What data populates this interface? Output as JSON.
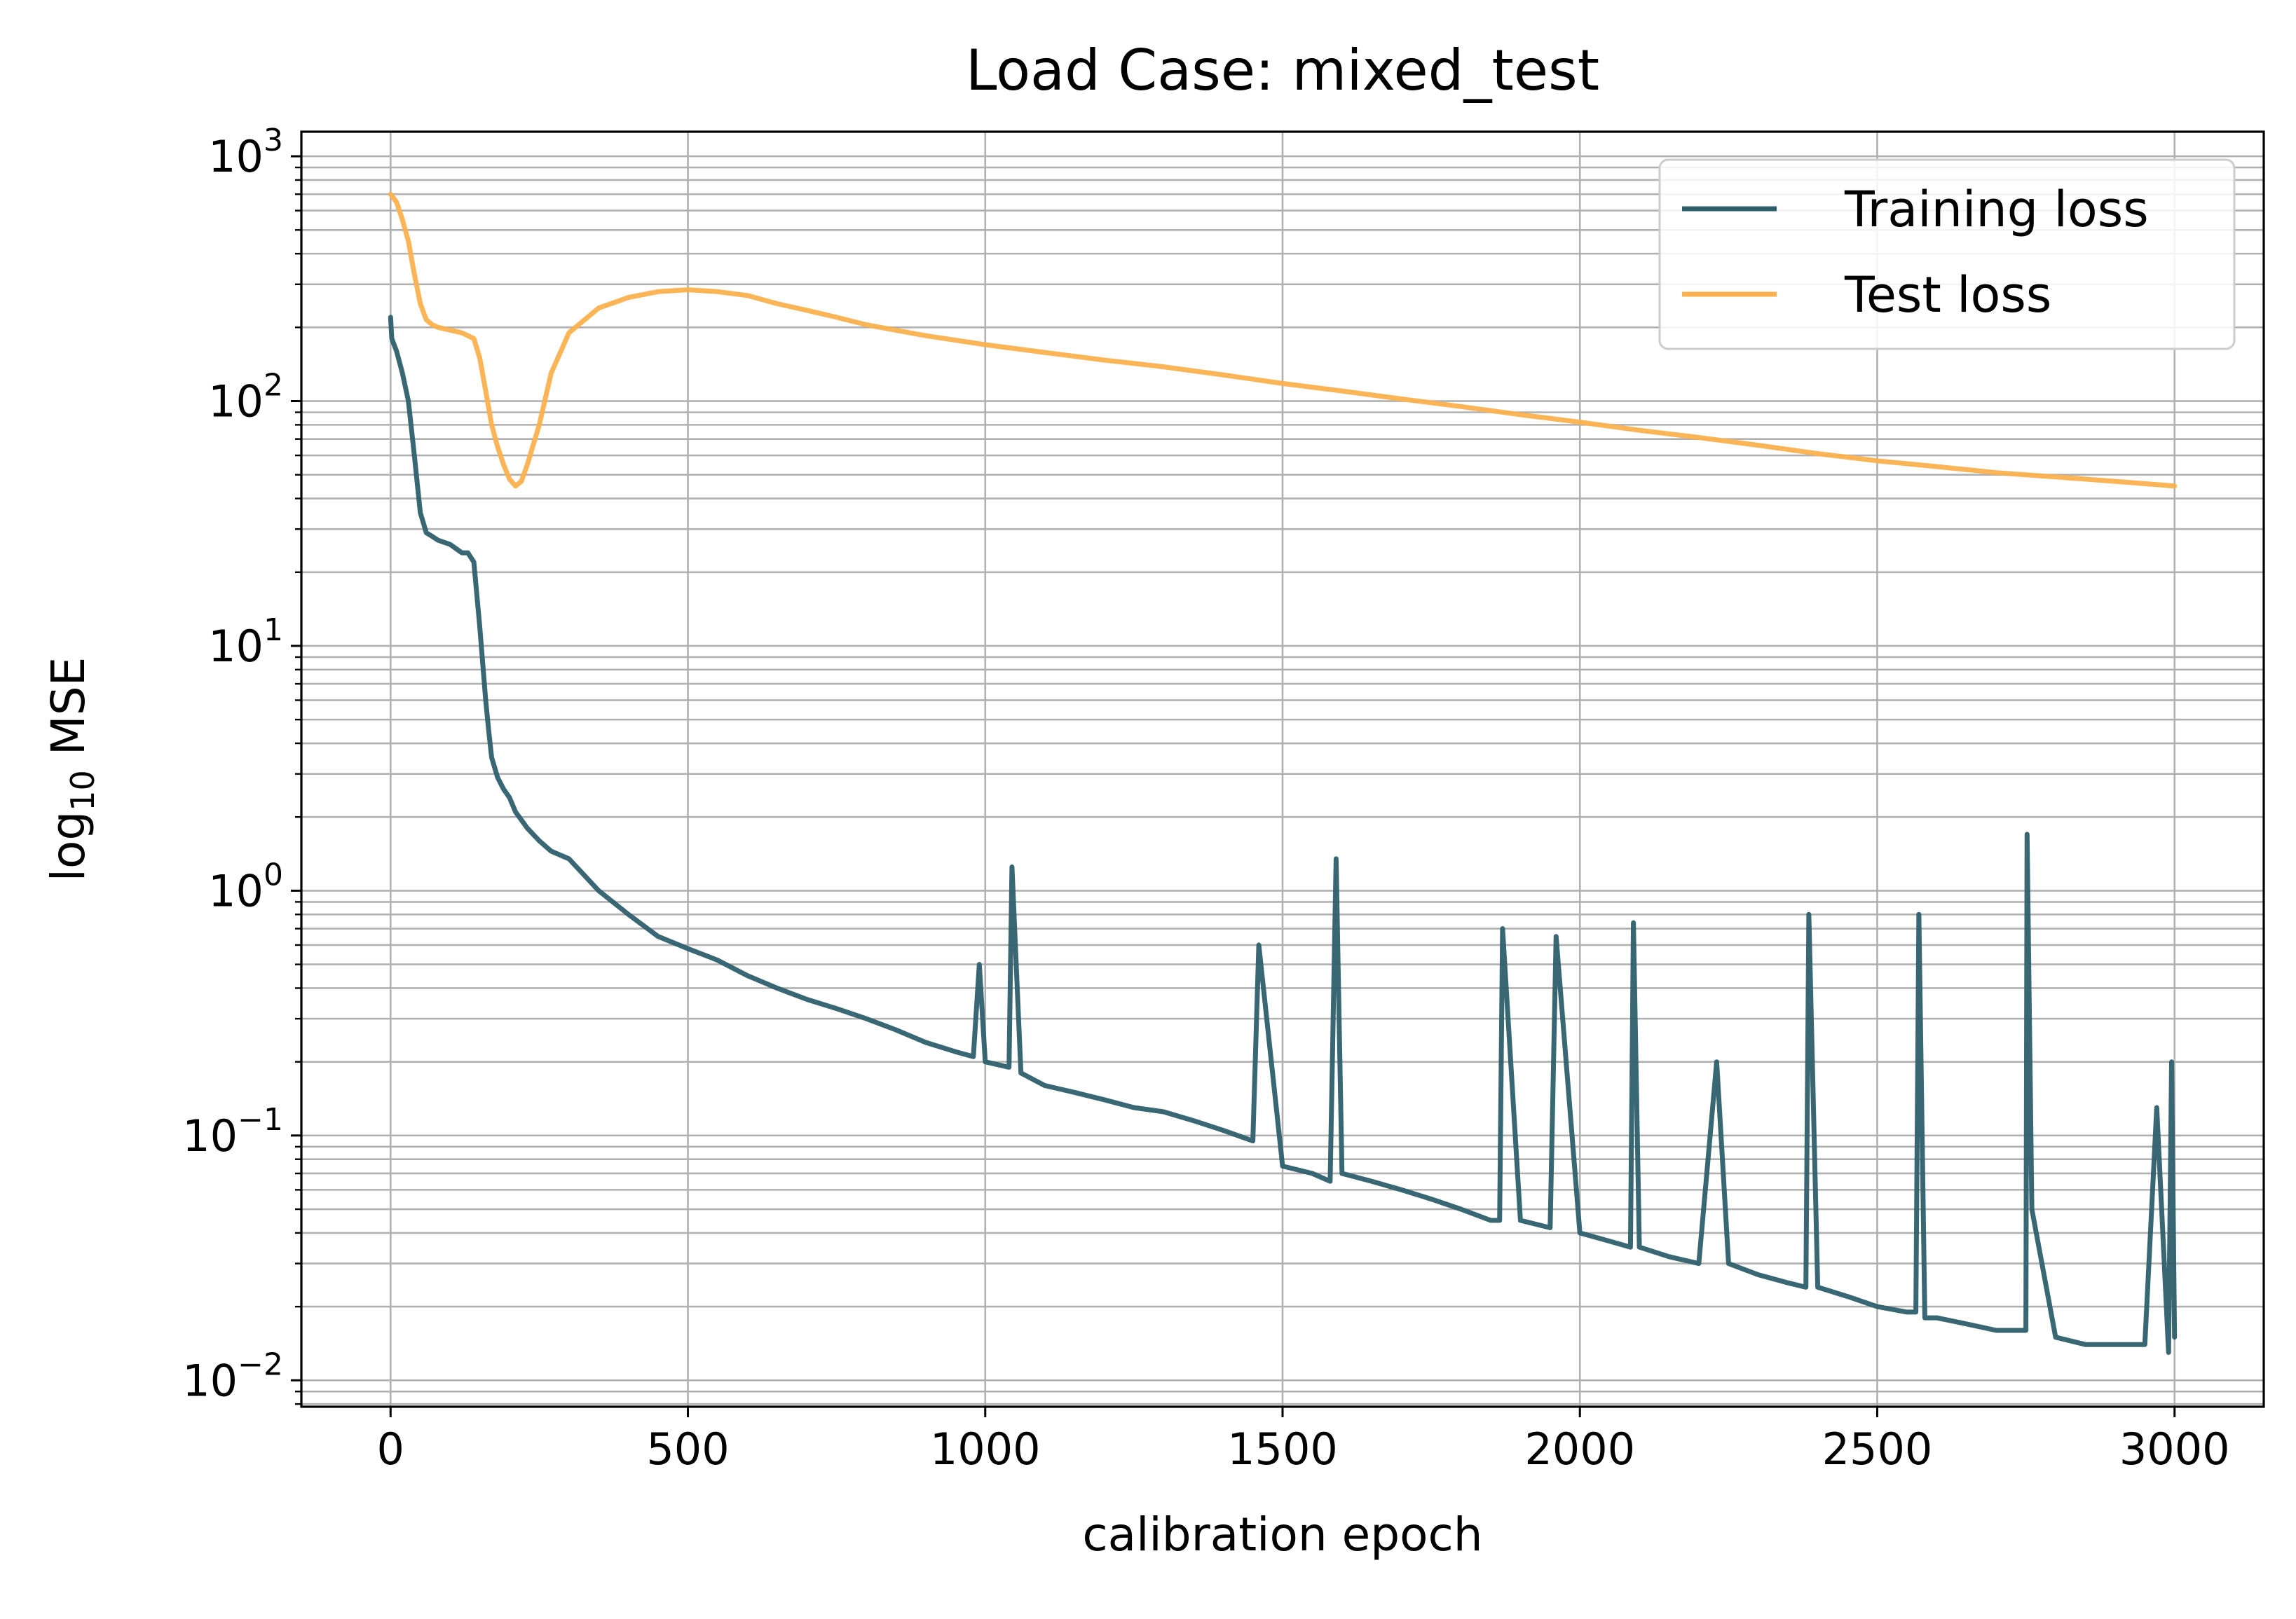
{
  "chart_data": {
    "type": "line",
    "title": "Load Case: mixed_test",
    "xlabel": "calibration epoch",
    "ylabel": {
      "base": "log",
      "subscript": "10",
      "rest": " MSE"
    },
    "x_scale": "linear",
    "y_scale": "log",
    "xlim": [
      -150,
      3150
    ],
    "ylim": [
      0.0078,
      1260
    ],
    "x_ticks": [
      {
        "value": 0,
        "label": "0"
      },
      {
        "value": 500,
        "label": "500"
      },
      {
        "value": 1000,
        "label": "1000"
      },
      {
        "value": 1500,
        "label": "1500"
      },
      {
        "value": 2000,
        "label": "2000"
      },
      {
        "value": 2500,
        "label": "2500"
      },
      {
        "value": 3000,
        "label": "3000"
      }
    ],
    "y_ticks": [
      {
        "value": 1000,
        "base": "10",
        "exp": "3"
      },
      {
        "value": 100,
        "base": "10",
        "exp": "2"
      },
      {
        "value": 10,
        "base": "10",
        "exp": "1"
      },
      {
        "value": 1,
        "base": "10",
        "exp": "0"
      },
      {
        "value": 0.1,
        "base": "10",
        "exp": "−1"
      },
      {
        "value": 0.01,
        "base": "10",
        "exp": "−2"
      }
    ],
    "grid": "major and minor, both axes",
    "legend_position": "top-right",
    "series": [
      {
        "name": "Training loss",
        "color": "#2e5f6b",
        "x": [
          0,
          2,
          10,
          20,
          30,
          40,
          50,
          60,
          70,
          80,
          100,
          120,
          130,
          140,
          150,
          160,
          165,
          170,
          180,
          190,
          200,
          210,
          230,
          250,
          270,
          300,
          350,
          400,
          450,
          500,
          550,
          600,
          650,
          700,
          750,
          800,
          850,
          900,
          950,
          980,
          990,
          1000,
          1040,
          1045,
          1060,
          1100,
          1150,
          1200,
          1250,
          1300,
          1350,
          1400,
          1450,
          1460,
          1500,
          1550,
          1580,
          1590,
          1600,
          1650,
          1700,
          1750,
          1800,
          1850,
          1865,
          1870,
          1900,
          1950,
          1960,
          2000,
          2050,
          2085,
          2090,
          2100,
          2150,
          2200,
          2230,
          2250,
          2300,
          2350,
          2380,
          2385,
          2400,
          2450,
          2500,
          2550,
          2565,
          2570,
          2580,
          2600,
          2650,
          2700,
          2750,
          2752,
          2760,
          2800,
          2850,
          2900,
          2950,
          2970,
          2990,
          2995,
          3000
        ],
        "y": [
          220,
          180,
          160,
          130,
          100,
          60,
          35,
          29,
          28,
          27,
          26,
          24,
          24,
          22,
          12,
          6,
          4.5,
          3.5,
          2.9,
          2.6,
          2.4,
          2.1,
          1.8,
          1.6,
          1.45,
          1.35,
          1.0,
          0.8,
          0.65,
          0.58,
          0.52,
          0.45,
          0.4,
          0.36,
          0.33,
          0.3,
          0.27,
          0.24,
          0.22,
          0.21,
          0.5,
          0.2,
          0.19,
          1.25,
          0.18,
          0.16,
          0.15,
          0.14,
          0.13,
          0.125,
          0.115,
          0.105,
          0.095,
          0.6,
          0.075,
          0.07,
          0.065,
          1.35,
          0.07,
          0.065,
          0.06,
          0.055,
          0.05,
          0.045,
          0.045,
          0.7,
          0.045,
          0.042,
          0.65,
          0.04,
          0.037,
          0.035,
          0.74,
          0.035,
          0.032,
          0.03,
          0.2,
          0.03,
          0.027,
          0.025,
          0.024,
          0.8,
          0.024,
          0.022,
          0.02,
          0.019,
          0.019,
          0.8,
          0.018,
          0.018,
          0.017,
          0.016,
          0.016,
          1.7,
          0.05,
          0.015,
          0.014,
          0.014,
          0.014,
          0.13,
          0.013,
          0.2,
          0.015
        ]
      },
      {
        "name": "Test loss",
        "color": "#fbb04d",
        "x": [
          0,
          10,
          20,
          30,
          40,
          50,
          60,
          70,
          80,
          100,
          120,
          140,
          150,
          160,
          170,
          180,
          190,
          200,
          210,
          220,
          230,
          250,
          270,
          300,
          350,
          400,
          450,
          500,
          550,
          600,
          650,
          700,
          750,
          800,
          900,
          1000,
          1100,
          1200,
          1300,
          1400,
          1500,
          1600,
          1700,
          1800,
          1900,
          2000,
          2100,
          2200,
          2300,
          2400,
          2500,
          2600,
          2700,
          2800,
          2900,
          3000
        ],
        "y": [
          700,
          650,
          550,
          450,
          330,
          250,
          215,
          205,
          200,
          195,
          190,
          180,
          150,
          110,
          80,
          65,
          55,
          48,
          45,
          47,
          55,
          80,
          130,
          190,
          240,
          265,
          280,
          285,
          280,
          270,
          250,
          235,
          220,
          205,
          185,
          170,
          158,
          147,
          138,
          128,
          118,
          110,
          102,
          95,
          88,
          82,
          76,
          71,
          66,
          61,
          57,
          54,
          51,
          49,
          47,
          45
        ]
      }
    ]
  }
}
